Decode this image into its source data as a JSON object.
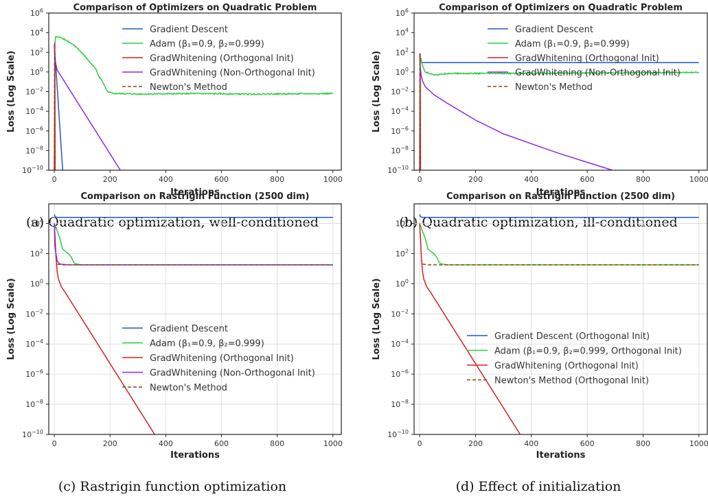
{
  "colors": {
    "gd": "#1f55d6",
    "adam": "#2ecc40",
    "gw_orth": "#d62020",
    "gw_nonorth": "#8a2be2",
    "newton": "#8b4513"
  },
  "chart_data": [
    {
      "type": "line",
      "title": "Comparison of Optimizers on Quadratic Problem",
      "caption": "(a) Quadratic optimization, well-conditioned",
      "xlabel": "Iterations",
      "ylabel": "Loss (Log Scale)",
      "xlim": [
        -20,
        1030
      ],
      "ylim_log10": [
        -10,
        6
      ],
      "yscale": "log",
      "grid": false,
      "legend_position": "top-right",
      "xticks": [
        "0",
        "200",
        "400",
        "600",
        "800",
        "1000"
      ],
      "xtick_values": [
        0,
        200,
        400,
        600,
        800,
        1000
      ],
      "yticks": [
        {
          "base": "10",
          "exp": "6"
        },
        {
          "base": "10",
          "exp": "4"
        },
        {
          "base": "10",
          "exp": "2"
        },
        {
          "base": "10",
          "exp": "0"
        },
        {
          "base": "10",
          "exp": "−2"
        },
        {
          "base": "10",
          "exp": "−4"
        },
        {
          "base": "10",
          "exp": "−6"
        },
        {
          "base": "10",
          "exp": "−8"
        },
        {
          "base": "10",
          "exp": "−10"
        }
      ],
      "ytick_values": [
        6,
        4,
        2,
        0,
        -2,
        -4,
        -6,
        -8,
        -10
      ],
      "series": [
        {
          "name": "Gradient Descent",
          "color_key": "gd",
          "style": "solid",
          "x": [
            0,
            2,
            30
          ],
          "y_log10": [
            2.7,
            2.0,
            -10
          ]
        },
        {
          "name": "Adam (β₁=0.9, β₂=0.999)",
          "color_key": "adam",
          "style": "solid",
          "noisy": true,
          "x": [
            0,
            5,
            25,
            50,
            80,
            110,
            130,
            150,
            160,
            170,
            180,
            190,
            210,
            230,
            300,
            500,
            700,
            1000
          ],
          "y_log10": [
            2.5,
            3.6,
            3.5,
            3.1,
            2.5,
            1.6,
            0.9,
            0.3,
            -0.5,
            -0.8,
            -1.4,
            -2.0,
            -2.2,
            -2.2,
            -2.25,
            -2.2,
            -2.25,
            -2.2
          ]
        },
        {
          "name": "GradWhitening (Orthogonal Init)",
          "color_key": "gw_orth",
          "style": "solid",
          "x": [
            0,
            2,
            3
          ],
          "y_log10": [
            -10,
            3.0,
            -10
          ]
        },
        {
          "name": "GradWhitening (Non-Orthogonal Init)",
          "color_key": "gw_nonorth",
          "style": "solid",
          "x": [
            0,
            2,
            10,
            237
          ],
          "y_log10": [
            2.8,
            1.3,
            0.2,
            -10
          ]
        },
        {
          "name": "Newton's Method",
          "color_key": "newton",
          "style": "dashed",
          "x": [
            0,
            1,
            2
          ],
          "y_log10": [
            -10,
            2.5,
            -10
          ]
        }
      ]
    },
    {
      "type": "line",
      "title": "Comparison of Optimizers on Quadratic Problem",
      "caption": "(b) Quadratic optimization, ill-conditioned",
      "xlabel": "Iterations",
      "ylabel": "Loss (Log Scale)",
      "xlim": [
        -20,
        1030
      ],
      "ylim_log10": [
        -10,
        6
      ],
      "yscale": "log",
      "grid": false,
      "legend_position": "top-right",
      "xticks": [
        "0",
        "200",
        "400",
        "600",
        "800",
        "1000"
      ],
      "xtick_values": [
        0,
        200,
        400,
        600,
        800,
        1000
      ],
      "yticks": [
        {
          "base": "10",
          "exp": "6"
        },
        {
          "base": "10",
          "exp": "4"
        },
        {
          "base": "10",
          "exp": "2"
        },
        {
          "base": "10",
          "exp": "0"
        },
        {
          "base": "10",
          "exp": "−2"
        },
        {
          "base": "10",
          "exp": "−4"
        },
        {
          "base": "10",
          "exp": "−6"
        },
        {
          "base": "10",
          "exp": "−8"
        },
        {
          "base": "10",
          "exp": "−10"
        }
      ],
      "ytick_values": [
        6,
        4,
        2,
        0,
        -2,
        -4,
        -6,
        -8,
        -10
      ],
      "series": [
        {
          "name": "Gradient Descent",
          "color_key": "gd",
          "style": "solid",
          "x": [
            0,
            3,
            8,
            1000
          ],
          "y_log10": [
            1.8,
            1.2,
            0.95,
            0.95
          ]
        },
        {
          "name": "Adam (β₁=0.9, β₂=0.999)",
          "color_key": "adam",
          "style": "solid",
          "noisy": true,
          "x": [
            0,
            5,
            10,
            20,
            40,
            60,
            100,
            300,
            600,
            1000
          ],
          "y_log10": [
            1.5,
            1.3,
            0.6,
            0.0,
            -0.2,
            -0.3,
            -0.15,
            -0.15,
            -0.1,
            -0.05
          ]
        },
        {
          "name": "GradWhitening (Orthogonal Init)",
          "color_key": "gw_orth",
          "style": "solid",
          "x": [
            0,
            2,
            3
          ],
          "y_log10": [
            -10,
            1.9,
            -10
          ]
        },
        {
          "name": "GradWhitening (Non-Orthogonal Init)",
          "color_key": "gw_nonorth",
          "style": "solid",
          "x": [
            0,
            2,
            5,
            10,
            20,
            50,
            100,
            200,
            300,
            400,
            500,
            600,
            690
          ],
          "y_log10": [
            1.9,
            0.5,
            -0.3,
            -0.9,
            -1.5,
            -2.3,
            -3.2,
            -4.9,
            -6.3,
            -7.3,
            -8.3,
            -9.2,
            -10
          ]
        },
        {
          "name": "Newton's Method",
          "color_key": "newton",
          "style": "dashed",
          "x": [
            0,
            1,
            2
          ],
          "y_log10": [
            -10,
            1.7,
            -10
          ]
        }
      ]
    },
    {
      "type": "line",
      "title": "Comparison on Rastrigin Function (2500 dim)",
      "caption": "(c) Rastrigin function optimization",
      "xlabel": "Iterations",
      "ylabel": "Loss (Log Scale)",
      "xlim": [
        -20,
        1030
      ],
      "ylim_log10": [
        -10,
        5.3
      ],
      "yscale": "log",
      "grid": true,
      "legend_position": "center-right",
      "xticks": [
        "0",
        "200",
        "400",
        "600",
        "800",
        "1000"
      ],
      "xtick_values": [
        0,
        200,
        400,
        600,
        800,
        1000
      ],
      "yticks": [
        {
          "base": "10",
          "exp": "4"
        },
        {
          "base": "10",
          "exp": "2"
        },
        {
          "base": "10",
          "exp": "0"
        },
        {
          "base": "10",
          "exp": "−2"
        },
        {
          "base": "10",
          "exp": "−4"
        },
        {
          "base": "10",
          "exp": "−6"
        },
        {
          "base": "10",
          "exp": "−8"
        },
        {
          "base": "10",
          "exp": "−10"
        }
      ],
      "ytick_values": [
        4,
        2,
        0,
        -2,
        -4,
        -6,
        -8,
        -10
      ],
      "series": [
        {
          "name": "Gradient Descent",
          "color_key": "gd",
          "style": "solid",
          "x": [
            0,
            3,
            10,
            1000
          ],
          "y_log10": [
            4.6,
            4.45,
            4.4,
            4.4
          ]
        },
        {
          "name": "Adam (β₁=0.9, β₂=0.999)",
          "color_key": "adam",
          "style": "solid",
          "x": [
            0,
            10,
            20,
            30,
            50,
            60,
            70,
            80,
            100,
            1000
          ],
          "y_log10": [
            4.0,
            3.5,
            3.0,
            2.3,
            2.0,
            1.8,
            1.4,
            1.3,
            1.25,
            1.25
          ]
        },
        {
          "name": "GradWhitening (Orthogonal Init)",
          "color_key": "gw_orth",
          "style": "solid",
          "x": [
            0,
            3,
            6,
            10,
            15,
            25,
            40,
            360
          ],
          "y_log10": [
            4.0,
            3.0,
            1.8,
            0.8,
            0.3,
            -0.2,
            -0.6,
            -10
          ]
        },
        {
          "name": "GradWhitening (Non-Orthogonal Init)",
          "color_key": "gw_nonorth",
          "style": "solid",
          "x": [
            0,
            2,
            10,
            20,
            50,
            1000
          ],
          "y_log10": [
            4.0,
            2.5,
            1.5,
            1.3,
            1.25,
            1.25
          ]
        },
        {
          "name": "Newton's Method",
          "color_key": "newton",
          "style": "dashed",
          "x": [
            10,
            30,
            1000
          ],
          "y_log10": [
            1.3,
            1.25,
            1.25
          ]
        }
      ]
    },
    {
      "type": "line",
      "title": "Comparison on Rastrigin Function (2500 dim)",
      "caption": "(d) Effect of initialization",
      "xlabel": "Iterations",
      "ylabel": "Loss (Log Scale)",
      "xlim": [
        -20,
        1030
      ],
      "ylim_log10": [
        -10,
        5.3
      ],
      "yscale": "log",
      "grid": true,
      "legend_position": "center-right",
      "xticks": [
        "0",
        "200",
        "400",
        "600",
        "800",
        "1000"
      ],
      "xtick_values": [
        0,
        200,
        400,
        600,
        800,
        1000
      ],
      "yticks": [
        {
          "base": "10",
          "exp": "4"
        },
        {
          "base": "10",
          "exp": "2"
        },
        {
          "base": "10",
          "exp": "0"
        },
        {
          "base": "10",
          "exp": "−2"
        },
        {
          "base": "10",
          "exp": "−4"
        },
        {
          "base": "10",
          "exp": "−6"
        },
        {
          "base": "10",
          "exp": "−8"
        },
        {
          "base": "10",
          "exp": "−10"
        }
      ],
      "ytick_values": [
        4,
        2,
        0,
        -2,
        -4,
        -6,
        -8,
        -10
      ],
      "series": [
        {
          "name": "Gradient Descent (Orthogonal Init)",
          "color_key": "gd",
          "style": "solid",
          "x": [
            0,
            3,
            10,
            1000
          ],
          "y_log10": [
            4.6,
            4.45,
            4.4,
            4.4
          ]
        },
        {
          "name": "Adam (β₁=0.9, β₂=0.999, Orthogonal Init)",
          "color_key": "adam",
          "style": "solid",
          "x": [
            0,
            10,
            20,
            30,
            50,
            60,
            70,
            80,
            100,
            1000
          ],
          "y_log10": [
            4.0,
            3.5,
            3.0,
            2.3,
            2.0,
            1.8,
            1.4,
            1.3,
            1.25,
            1.25
          ]
        },
        {
          "name": "GradWhitening (Orthogonal Init)",
          "color_key": "gw_orth",
          "style": "solid",
          "x": [
            0,
            3,
            6,
            10,
            15,
            25,
            40,
            360
          ],
          "y_log10": [
            4.0,
            3.0,
            1.8,
            0.8,
            0.3,
            -0.2,
            -0.6,
            -10
          ]
        },
        {
          "name": "Newton's Method (Orthogonal Init)",
          "color_key": "newton",
          "style": "dashed",
          "x": [
            10,
            30,
            1000
          ],
          "y_log10": [
            1.3,
            1.25,
            1.25
          ]
        }
      ]
    }
  ]
}
